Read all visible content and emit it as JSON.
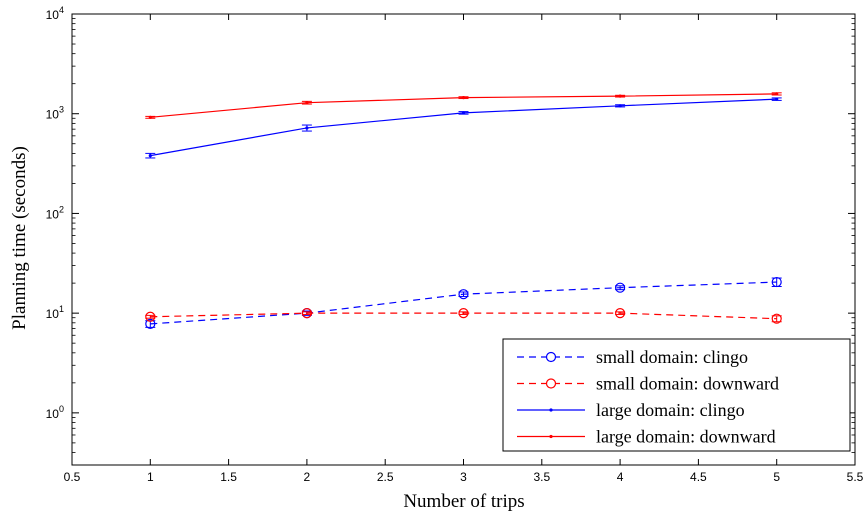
{
  "chart_data": {
    "type": "line",
    "title": "",
    "xlabel": "Number of trips",
    "ylabel": "Planning time (seconds)",
    "x_scale": "linear",
    "y_scale": "log",
    "xlim": [
      0.5,
      5.5
    ],
    "ylim": [
      0.3,
      10000
    ],
    "x_ticks": [
      "0.5",
      "1",
      "1.5",
      "2",
      "2.5",
      "3",
      "3.5",
      "4",
      "4.5",
      "5",
      "5.5"
    ],
    "y_ticks": [
      {
        "base": "10",
        "exp": "0",
        "value": 1
      },
      {
        "base": "10",
        "exp": "1",
        "value": 10
      },
      {
        "base": "10",
        "exp": "2",
        "value": 100
      },
      {
        "base": "10",
        "exp": "3",
        "value": 1000
      },
      {
        "base": "10",
        "exp": "4",
        "value": 10000
      }
    ],
    "grid": false,
    "legend_position": "bottom-right",
    "series": [
      {
        "name": "small domain: clingo",
        "color": "#0000ff",
        "line": "dashed",
        "marker": "circle",
        "x": [
          1,
          2,
          3,
          4,
          5
        ],
        "y": [
          7.8,
          10.0,
          15.5,
          18.0,
          20.5
        ],
        "err": [
          0.6,
          0.5,
          0.8,
          0.8,
          2.0
        ]
      },
      {
        "name": "small domain: downward",
        "color": "#ff0000",
        "line": "dashed",
        "marker": "circle",
        "x": [
          1,
          2,
          3,
          4,
          5
        ],
        "y": [
          9.2,
          10.0,
          10.0,
          10.0,
          8.8
        ],
        "err": [
          0.3,
          0.3,
          0.3,
          0.3,
          0.6
        ]
      },
      {
        "name": "large domain: clingo",
        "color": "#0000ff",
        "line": "solid",
        "marker": "dot",
        "x": [
          1,
          2,
          3,
          4,
          5
        ],
        "y": [
          380,
          720,
          1020,
          1200,
          1400
        ],
        "err": [
          20,
          50,
          30,
          30,
          40
        ]
      },
      {
        "name": "large domain: downward",
        "color": "#ff0000",
        "line": "solid",
        "marker": "dot",
        "x": [
          1,
          2,
          3,
          4,
          5
        ],
        "y": [
          920,
          1290,
          1450,
          1500,
          1580
        ],
        "err": [
          20,
          40,
          30,
          30,
          40
        ]
      }
    ]
  }
}
